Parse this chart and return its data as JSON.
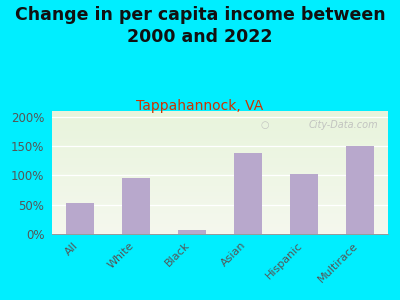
{
  "title": "Change in per capita income between\n2000 and 2022",
  "subtitle": "Tappahannock, VA",
  "categories": [
    "All",
    "White",
    "Black",
    "Asian",
    "Hispanic",
    "Multirace"
  ],
  "values": [
    53,
    96,
    7,
    138,
    102,
    150
  ],
  "bar_color": "#b8a8cc",
  "background_outer": "#00eeff",
  "background_inner_color": "#e8f0e0",
  "title_fontsize": 12.5,
  "subtitle_fontsize": 10,
  "subtitle_color": "#cc3300",
  "title_color": "#111111",
  "tick_color": "#555555",
  "ylim": [
    0,
    210
  ],
  "yticks": [
    0,
    50,
    100,
    150,
    200
  ],
  "watermark": "City-Data.com"
}
